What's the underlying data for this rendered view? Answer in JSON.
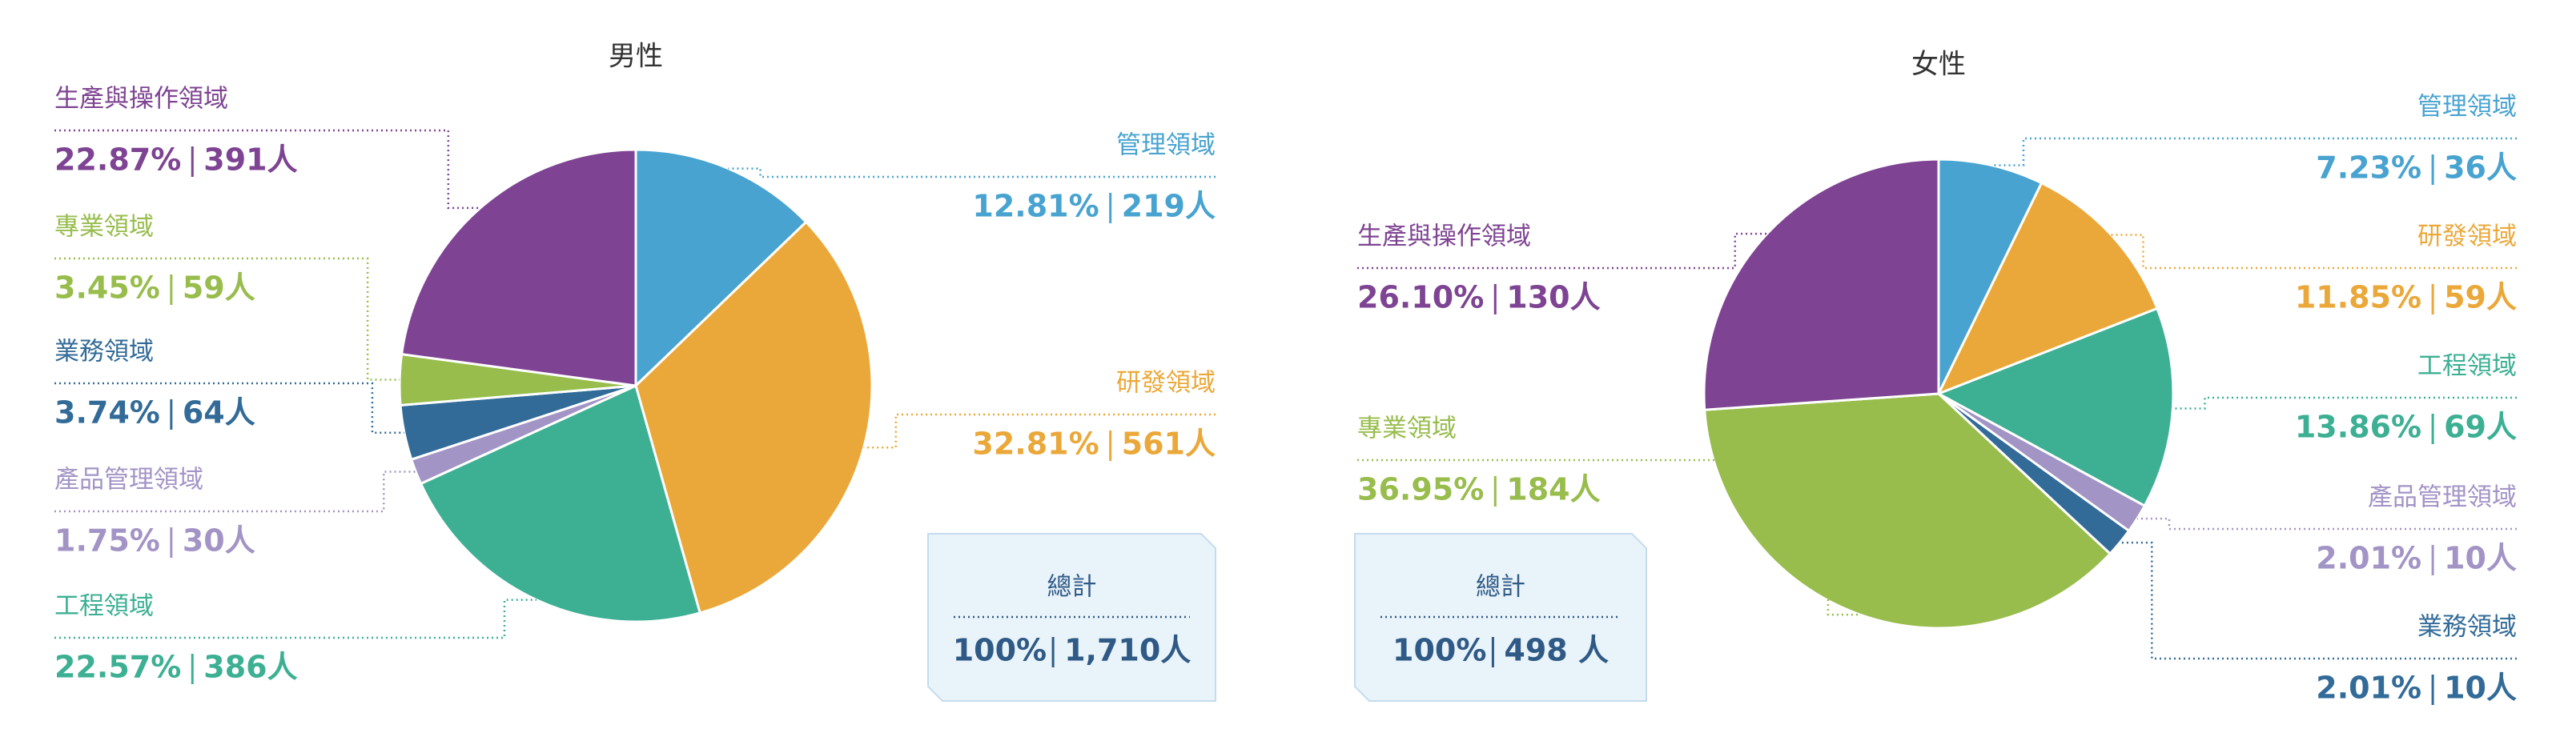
{
  "chart_data": [
    {
      "type": "pie",
      "title": "男性",
      "categories": [
        "管理領域",
        "研發領域",
        "工程領域",
        "產品管理領域",
        "業務領域",
        "專業領域",
        "生產與操作領域"
      ],
      "colors": [
        "#48a3d0",
        "#eba83a",
        "#3db094",
        "#a394c6",
        "#336b98",
        "#98bd4d",
        "#7e4493"
      ],
      "values": [
        12.81,
        32.81,
        22.57,
        1.75,
        3.74,
        3.45,
        22.87
      ],
      "value_labels": [
        "12.81%",
        "32.81%",
        "22.57%",
        "1.75%",
        "3.74%",
        "3.45%",
        "22.87%"
      ],
      "counts": [
        219,
        561,
        386,
        30,
        64,
        59,
        391
      ],
      "count_labels": [
        "219人",
        "561人",
        "386人",
        "30人",
        "64人",
        "59人",
        "391人"
      ],
      "total": {
        "label": "總計",
        "percent": 100,
        "percent_label": "100%",
        "count": 1710,
        "count_label": "1,710人"
      }
    },
    {
      "type": "pie",
      "title": "女性",
      "categories": [
        "管理領域",
        "研發領域",
        "工程領域",
        "產品管理領域",
        "業務領域",
        "專業領域",
        "生產與操作領域"
      ],
      "colors": [
        "#48a3d0",
        "#eba83a",
        "#3db094",
        "#a394c6",
        "#336b98",
        "#98bd4d",
        "#7e4493"
      ],
      "values": [
        7.23,
        11.85,
        13.86,
        2.01,
        2.01,
        36.95,
        26.1
      ],
      "value_labels": [
        "7.23%",
        "11.85%",
        "13.86%",
        "2.01%",
        "2.01%",
        "36.95%",
        "26.10%"
      ],
      "counts": [
        36,
        59,
        69,
        10,
        10,
        184,
        130
      ],
      "count_labels": [
        "36人",
        "59人",
        "69人",
        "10人",
        "10人",
        "184人",
        "130人"
      ],
      "total": {
        "label": "總計",
        "percent": 100,
        "percent_label": "100%",
        "count": 498,
        "count_label": "498 人"
      }
    }
  ]
}
